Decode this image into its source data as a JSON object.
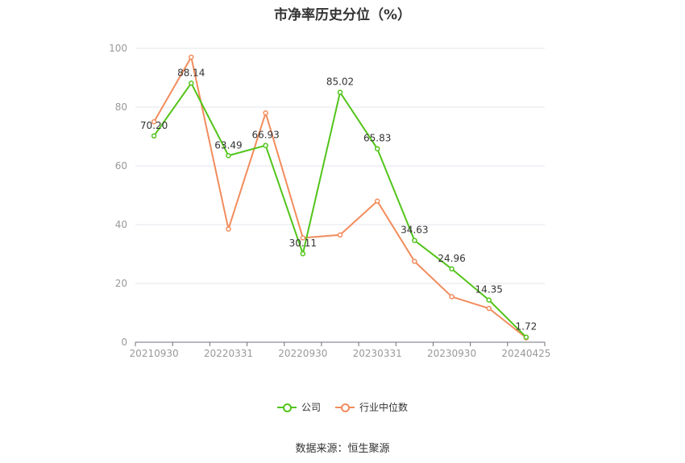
{
  "title": "市净率历史分位（%）",
  "source": "数据来源：恒生聚源",
  "colors": {
    "company": "#52c41a",
    "industry": "#f28c5c",
    "grid": "#e3e6ee",
    "axis": "#999999",
    "label": "#333333"
  },
  "legend": [
    {
      "name": "公司",
      "color": "#52c41a"
    },
    {
      "name": "行业中位数",
      "color": "#f28c5c"
    }
  ],
  "chart_data": {
    "type": "line",
    "title": "市净率历史分位（%）",
    "x_tick_labels": [
      "20210930",
      "20220331",
      "20220930",
      "20230331",
      "20230930",
      "20240425"
    ],
    "ylim": [
      0,
      100
    ],
    "y_ticks": [
      0,
      20,
      40,
      60,
      80,
      100
    ],
    "grid": true,
    "legend_position": "bottom",
    "series": [
      {
        "name": "公司",
        "color": "#52c41a",
        "values": [
          70.2,
          88.14,
          63.49,
          66.93,
          30.11,
          85.02,
          65.83,
          34.63,
          24.96,
          14.35,
          1.72
        ],
        "labels": [
          "70.20",
          "88.14",
          "63.49",
          "66.93",
          "30.11",
          "85.02",
          "65.83",
          "34.63",
          "24.96",
          "14.35",
          "1.72"
        ]
      },
      {
        "name": "行业中位数",
        "color": "#f28c5c",
        "values": [
          75,
          97,
          38.5,
          78,
          35.5,
          36.5,
          48,
          27.5,
          15.5,
          11.5,
          1.5
        ]
      }
    ]
  }
}
